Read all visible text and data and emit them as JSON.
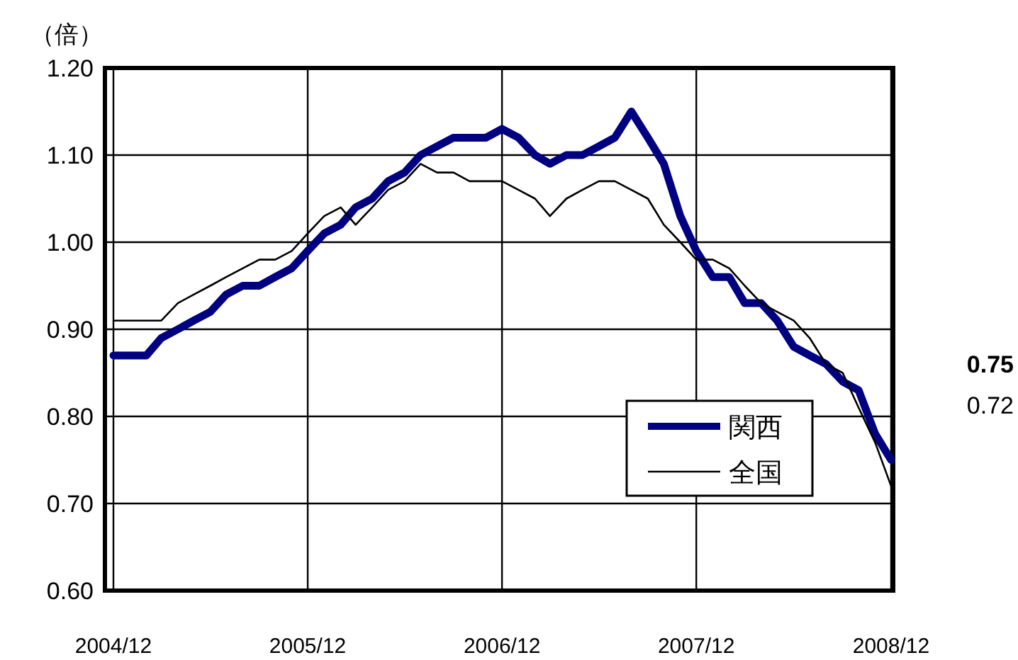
{
  "chart_data": {
    "type": "line",
    "ylabel": "（倍）",
    "x": [
      "2004-12",
      "2005-01",
      "2005-02",
      "2005-03",
      "2005-04",
      "2005-05",
      "2005-06",
      "2005-07",
      "2005-08",
      "2005-09",
      "2005-10",
      "2005-11",
      "2005-12",
      "2006-01",
      "2006-02",
      "2006-03",
      "2006-04",
      "2006-05",
      "2006-06",
      "2006-07",
      "2006-08",
      "2006-09",
      "2006-10",
      "2006-11",
      "2006-12",
      "2007-01",
      "2007-02",
      "2007-03",
      "2007-04",
      "2007-05",
      "2007-06",
      "2007-07",
      "2007-08",
      "2007-09",
      "2007-10",
      "2007-11",
      "2007-12",
      "2008-01",
      "2008-02",
      "2008-03",
      "2008-04",
      "2008-05",
      "2008-06",
      "2008-07",
      "2008-08",
      "2008-09",
      "2008-10",
      "2008-11",
      "2008-12"
    ],
    "xlim": [
      "2004-11-15",
      "2008-12-05"
    ],
    "xticks": [
      {
        "value": "2004-12",
        "label": "2004/12"
      },
      {
        "value": "2005-12",
        "label": "2005/12"
      },
      {
        "value": "2006-12",
        "label": "2006/12"
      },
      {
        "value": "2007-12",
        "label": "2007/12"
      },
      {
        "value": "2008-12",
        "label": "2008/12"
      }
    ],
    "ylim": [
      0.6,
      1.2
    ],
    "yticks": [
      {
        "value": 0.6,
        "label": "0.60"
      },
      {
        "value": 0.7,
        "label": "0.70"
      },
      {
        "value": 0.8,
        "label": "0.80"
      },
      {
        "value": 0.9,
        "label": "0.90"
      },
      {
        "value": 1.0,
        "label": "1.00"
      },
      {
        "value": 1.1,
        "label": "1.10"
      },
      {
        "value": 1.2,
        "label": "1.20"
      }
    ],
    "grid": true,
    "legend": "bottom right",
    "marker": "none",
    "line_style": "solid",
    "series": [
      {
        "name": "関西",
        "color": "#000080",
        "values": [
          0.87,
          0.87,
          0.87,
          0.89,
          0.9,
          0.91,
          0.92,
          0.94,
          0.95,
          0.95,
          0.96,
          0.97,
          0.99,
          1.01,
          1.02,
          1.04,
          1.05,
          1.07,
          1.08,
          1.1,
          1.11,
          1.12,
          1.12,
          1.12,
          1.13,
          1.12,
          1.1,
          1.09,
          1.1,
          1.1,
          1.11,
          1.12,
          1.15,
          1.12,
          1.09,
          1.03,
          0.99,
          0.96,
          0.96,
          0.93,
          0.93,
          0.91,
          0.88,
          0.87,
          0.86,
          0.84,
          0.83,
          0.78,
          0.75
        ]
      },
      {
        "name": "全国",
        "color": "#000000",
        "values": [
          0.91,
          0.91,
          0.91,
          0.91,
          0.93,
          0.94,
          0.95,
          0.96,
          0.97,
          0.98,
          0.98,
          0.99,
          1.01,
          1.03,
          1.04,
          1.02,
          1.04,
          1.06,
          1.07,
          1.09,
          1.08,
          1.08,
          1.07,
          1.07,
          1.07,
          1.06,
          1.05,
          1.03,
          1.05,
          1.06,
          1.07,
          1.07,
          1.06,
          1.05,
          1.02,
          1.0,
          0.98,
          0.98,
          0.97,
          0.95,
          0.93,
          0.92,
          0.91,
          0.89,
          0.86,
          0.85,
          0.81,
          0.77,
          0.72
        ]
      }
    ],
    "annotations": [
      "0.75",
      "0.72"
    ]
  }
}
